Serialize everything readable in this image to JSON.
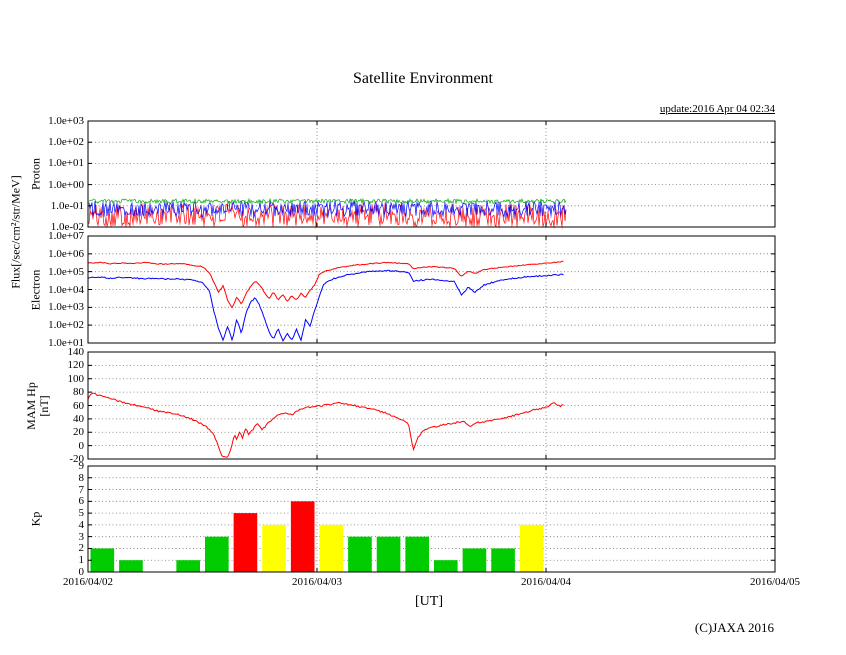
{
  "title": "Satellite Environment",
  "update_text": "update:2016 Apr 04 02:34",
  "copyright": "(C)JAXA 2016",
  "flux_axis_label": "Flux[/sec/cm²/str/MeV]",
  "xaxis": {
    "label": "[UT]",
    "tick_labels": [
      "2016/04/02",
      "2016/04/03",
      "2016/04/04",
      "2016/04/05"
    ],
    "span_days": 3
  },
  "chart_data": [
    {
      "id": "proton_flux",
      "type": "line",
      "ylabel": "Proton",
      "yscale": "log",
      "ylim": [
        0.01,
        1000
      ],
      "ytick_values": [
        1000,
        100,
        10,
        1,
        0.1,
        0.01
      ],
      "ytick_labels": [
        "1.0e+03",
        "1.0e+02",
        "1.0e+01",
        "1.0e+00",
        "1.0e-01",
        "1.0e-02"
      ],
      "t_range_days": [
        0,
        2.09
      ],
      "series": [
        {
          "name": "proton-red",
          "color": "#ff0000",
          "render": "noise",
          "band": [
            0.01,
            0.12
          ]
        },
        {
          "name": "proton-blue",
          "color": "#0000ff",
          "render": "noise",
          "band": [
            0.03,
            0.17
          ]
        },
        {
          "name": "proton-green",
          "color": "#00aa00",
          "render": "noise",
          "band": [
            0.13,
            0.21
          ]
        }
      ]
    },
    {
      "id": "electron_flux",
      "type": "line",
      "ylabel": "Electron",
      "yscale": "log",
      "ylim": [
        10,
        10000000
      ],
      "ytick_values": [
        10000000,
        1000000,
        100000,
        10000,
        1000,
        100,
        10
      ],
      "ytick_labels": [
        "1.0e+07",
        "1.0e+06",
        "1.0e+05",
        "1.0e+04",
        "1.0e+03",
        "1.0e+02",
        "1.0e+01"
      ],
      "series": [
        {
          "name": "electron-blue",
          "color": "#0000ff",
          "render": "points",
          "jitter": 0.07,
          "points": [
            [
              0,
              45000
            ],
            [
              0.05,
              50000
            ],
            [
              0.1,
              42000
            ],
            [
              0.15,
              48000
            ],
            [
              0.2,
              44000
            ],
            [
              0.25,
              40000
            ],
            [
              0.3,
              43000
            ],
            [
              0.35,
              38000
            ],
            [
              0.4,
              40000
            ],
            [
              0.45,
              34000
            ],
            [
              0.5,
              25000
            ],
            [
              0.53,
              8000
            ],
            [
              0.55,
              600
            ],
            [
              0.57,
              60
            ],
            [
              0.59,
              15
            ],
            [
              0.61,
              90
            ],
            [
              0.63,
              14
            ],
            [
              0.65,
              220
            ],
            [
              0.67,
              35
            ],
            [
              0.69,
              500
            ],
            [
              0.71,
              2000
            ],
            [
              0.73,
              3500
            ],
            [
              0.75,
              1200
            ],
            [
              0.77,
              250
            ],
            [
              0.79,
              45
            ],
            [
              0.81,
              15
            ],
            [
              0.83,
              70
            ],
            [
              0.85,
              13
            ],
            [
              0.87,
              35
            ],
            [
              0.89,
              14
            ],
            [
              0.91,
              60
            ],
            [
              0.93,
              13
            ],
            [
              0.95,
              200
            ],
            [
              0.97,
              90
            ],
            [
              0.99,
              700
            ],
            [
              1.01,
              4000
            ],
            [
              1.03,
              20000
            ],
            [
              1.07,
              40000
            ],
            [
              1.12,
              60000
            ],
            [
              1.18,
              85000
            ],
            [
              1.24,
              105000
            ],
            [
              1.3,
              115000
            ],
            [
              1.35,
              105000
            ],
            [
              1.4,
              95000
            ],
            [
              1.42,
              30000
            ],
            [
              1.46,
              34000
            ],
            [
              1.5,
              38000
            ],
            [
              1.55,
              33000
            ],
            [
              1.6,
              28000
            ],
            [
              1.63,
              5000
            ],
            [
              1.66,
              13000
            ],
            [
              1.69,
              7000
            ],
            [
              1.73,
              18000
            ],
            [
              1.78,
              28000
            ],
            [
              1.83,
              38000
            ],
            [
              1.88,
              46000
            ],
            [
              1.93,
              52000
            ],
            [
              1.98,
              58000
            ],
            [
              2.03,
              64000
            ],
            [
              2.08,
              70000
            ]
          ]
        },
        {
          "name": "electron-red",
          "color": "#ff0000",
          "render": "points",
          "jitter": 0.05,
          "points": [
            [
              0,
              300000
            ],
            [
              0.05,
              330000
            ],
            [
              0.1,
              280000
            ],
            [
              0.15,
              310000
            ],
            [
              0.2,
              290000
            ],
            [
              0.25,
              320000
            ],
            [
              0.3,
              280000
            ],
            [
              0.35,
              260000
            ],
            [
              0.4,
              290000
            ],
            [
              0.45,
              240000
            ],
            [
              0.5,
              190000
            ],
            [
              0.53,
              90000
            ],
            [
              0.55,
              25000
            ],
            [
              0.57,
              7000
            ],
            [
              0.59,
              16000
            ],
            [
              0.61,
              2500
            ],
            [
              0.63,
              900
            ],
            [
              0.65,
              4000
            ],
            [
              0.67,
              1500
            ],
            [
              0.69,
              6000
            ],
            [
              0.71,
              15000
            ],
            [
              0.73,
              30000
            ],
            [
              0.75,
              18000
            ],
            [
              0.77,
              7000
            ],
            [
              0.79,
              3000
            ],
            [
              0.81,
              7500
            ],
            [
              0.83,
              2500
            ],
            [
              0.85,
              5500
            ],
            [
              0.87,
              2200
            ],
            [
              0.89,
              4500
            ],
            [
              0.91,
              2600
            ],
            [
              0.93,
              6000
            ],
            [
              0.95,
              3500
            ],
            [
              0.97,
              9000
            ],
            [
              0.99,
              18000
            ],
            [
              1.01,
              70000
            ],
            [
              1.04,
              110000
            ],
            [
              1.08,
              150000
            ],
            [
              1.13,
              200000
            ],
            [
              1.19,
              250000
            ],
            [
              1.25,
              290000
            ],
            [
              1.3,
              320000
            ],
            [
              1.35,
              300000
            ],
            [
              1.4,
              280000
            ],
            [
              1.42,
              150000
            ],
            [
              1.46,
              170000
            ],
            [
              1.5,
              190000
            ],
            [
              1.55,
              175000
            ],
            [
              1.6,
              150000
            ],
            [
              1.63,
              55000
            ],
            [
              1.66,
              110000
            ],
            [
              1.69,
              80000
            ],
            [
              1.73,
              130000
            ],
            [
              1.78,
              160000
            ],
            [
              1.83,
              190000
            ],
            [
              1.88,
              220000
            ],
            [
              1.93,
              250000
            ],
            [
              1.98,
              280000
            ],
            [
              2.03,
              320000
            ],
            [
              2.08,
              380000
            ]
          ]
        }
      ]
    },
    {
      "id": "mam_hp",
      "type": "line",
      "ylabel": "MAM Hp",
      "ylabel_unit": "[nT]",
      "yscale": "linear",
      "ylim": [
        -20,
        140
      ],
      "ytick_values": [
        140,
        120,
        100,
        80,
        60,
        40,
        20,
        0,
        -20
      ],
      "ytick_labels": [
        "140",
        "120",
        "100",
        "80",
        "60",
        "40",
        "20",
        "0",
        "-20"
      ],
      "series": [
        {
          "name": "hp",
          "color": "#ff0000",
          "render": "points",
          "jitter": 2.5,
          "points": [
            [
              0,
              70
            ],
            [
              0.02,
              79
            ],
            [
              0.04,
              76
            ],
            [
              0.08,
              72
            ],
            [
              0.12,
              68
            ],
            [
              0.16,
              64
            ],
            [
              0.2,
              61
            ],
            [
              0.25,
              57
            ],
            [
              0.3,
              52
            ],
            [
              0.35,
              49
            ],
            [
              0.4,
              46
            ],
            [
              0.45,
              40
            ],
            [
              0.5,
              32
            ],
            [
              0.53,
              24
            ],
            [
              0.55,
              16
            ],
            [
              0.565,
              4
            ],
            [
              0.58,
              -12
            ],
            [
              0.6,
              -19
            ],
            [
              0.615,
              -14
            ],
            [
              0.63,
              2
            ],
            [
              0.64,
              18
            ],
            [
              0.65,
              8
            ],
            [
              0.66,
              22
            ],
            [
              0.675,
              12
            ],
            [
              0.69,
              28
            ],
            [
              0.7,
              16
            ],
            [
              0.72,
              24
            ],
            [
              0.74,
              34
            ],
            [
              0.76,
              24
            ],
            [
              0.78,
              31
            ],
            [
              0.8,
              38
            ],
            [
              0.83,
              45
            ],
            [
              0.86,
              49
            ],
            [
              0.89,
              46
            ],
            [
              0.92,
              53
            ],
            [
              0.95,
              57
            ],
            [
              1.0,
              59
            ],
            [
              1.05,
              61
            ],
            [
              1.1,
              64
            ],
            [
              1.15,
              61
            ],
            [
              1.2,
              57
            ],
            [
              1.25,
              54
            ],
            [
              1.3,
              49
            ],
            [
              1.35,
              41
            ],
            [
              1.4,
              33
            ],
            [
              1.42,
              -6
            ],
            [
              1.44,
              12
            ],
            [
              1.47,
              24
            ],
            [
              1.5,
              27
            ],
            [
              1.55,
              31
            ],
            [
              1.6,
              34
            ],
            [
              1.64,
              37
            ],
            [
              1.67,
              29
            ],
            [
              1.7,
              34
            ],
            [
              1.75,
              37
            ],
            [
              1.8,
              40
            ],
            [
              1.85,
              44
            ],
            [
              1.9,
              49
            ],
            [
              1.95,
              54
            ],
            [
              2.0,
              57
            ],
            [
              2.03,
              64
            ],
            [
              2.06,
              59
            ],
            [
              2.08,
              62
            ]
          ]
        }
      ]
    },
    {
      "id": "kp",
      "type": "bar",
      "ylabel": "Kp",
      "yscale": "linear",
      "ylim": [
        0,
        9
      ],
      "ytick_values": [
        9,
        8,
        7,
        6,
        5,
        4,
        3,
        2,
        1,
        0
      ],
      "ytick_labels": [
        "9",
        "8",
        "7",
        "6",
        "5",
        "4",
        "3",
        "2",
        "1",
        "0"
      ],
      "bar_interval_hours": 3,
      "values": [
        2,
        1,
        null,
        1,
        3,
        5,
        4,
        6,
        4,
        3,
        3,
        3,
        1,
        2,
        2,
        4
      ],
      "bar_colors": [
        "#00cc00",
        "#00cc00",
        null,
        "#00cc00",
        "#00cc00",
        "#ff0000",
        "#ffff00",
        "#ff0000",
        "#ffff00",
        "#00cc00",
        "#00cc00",
        "#00cc00",
        "#00cc00",
        "#00cc00",
        "#00cc00",
        "#ffff00"
      ]
    }
  ]
}
